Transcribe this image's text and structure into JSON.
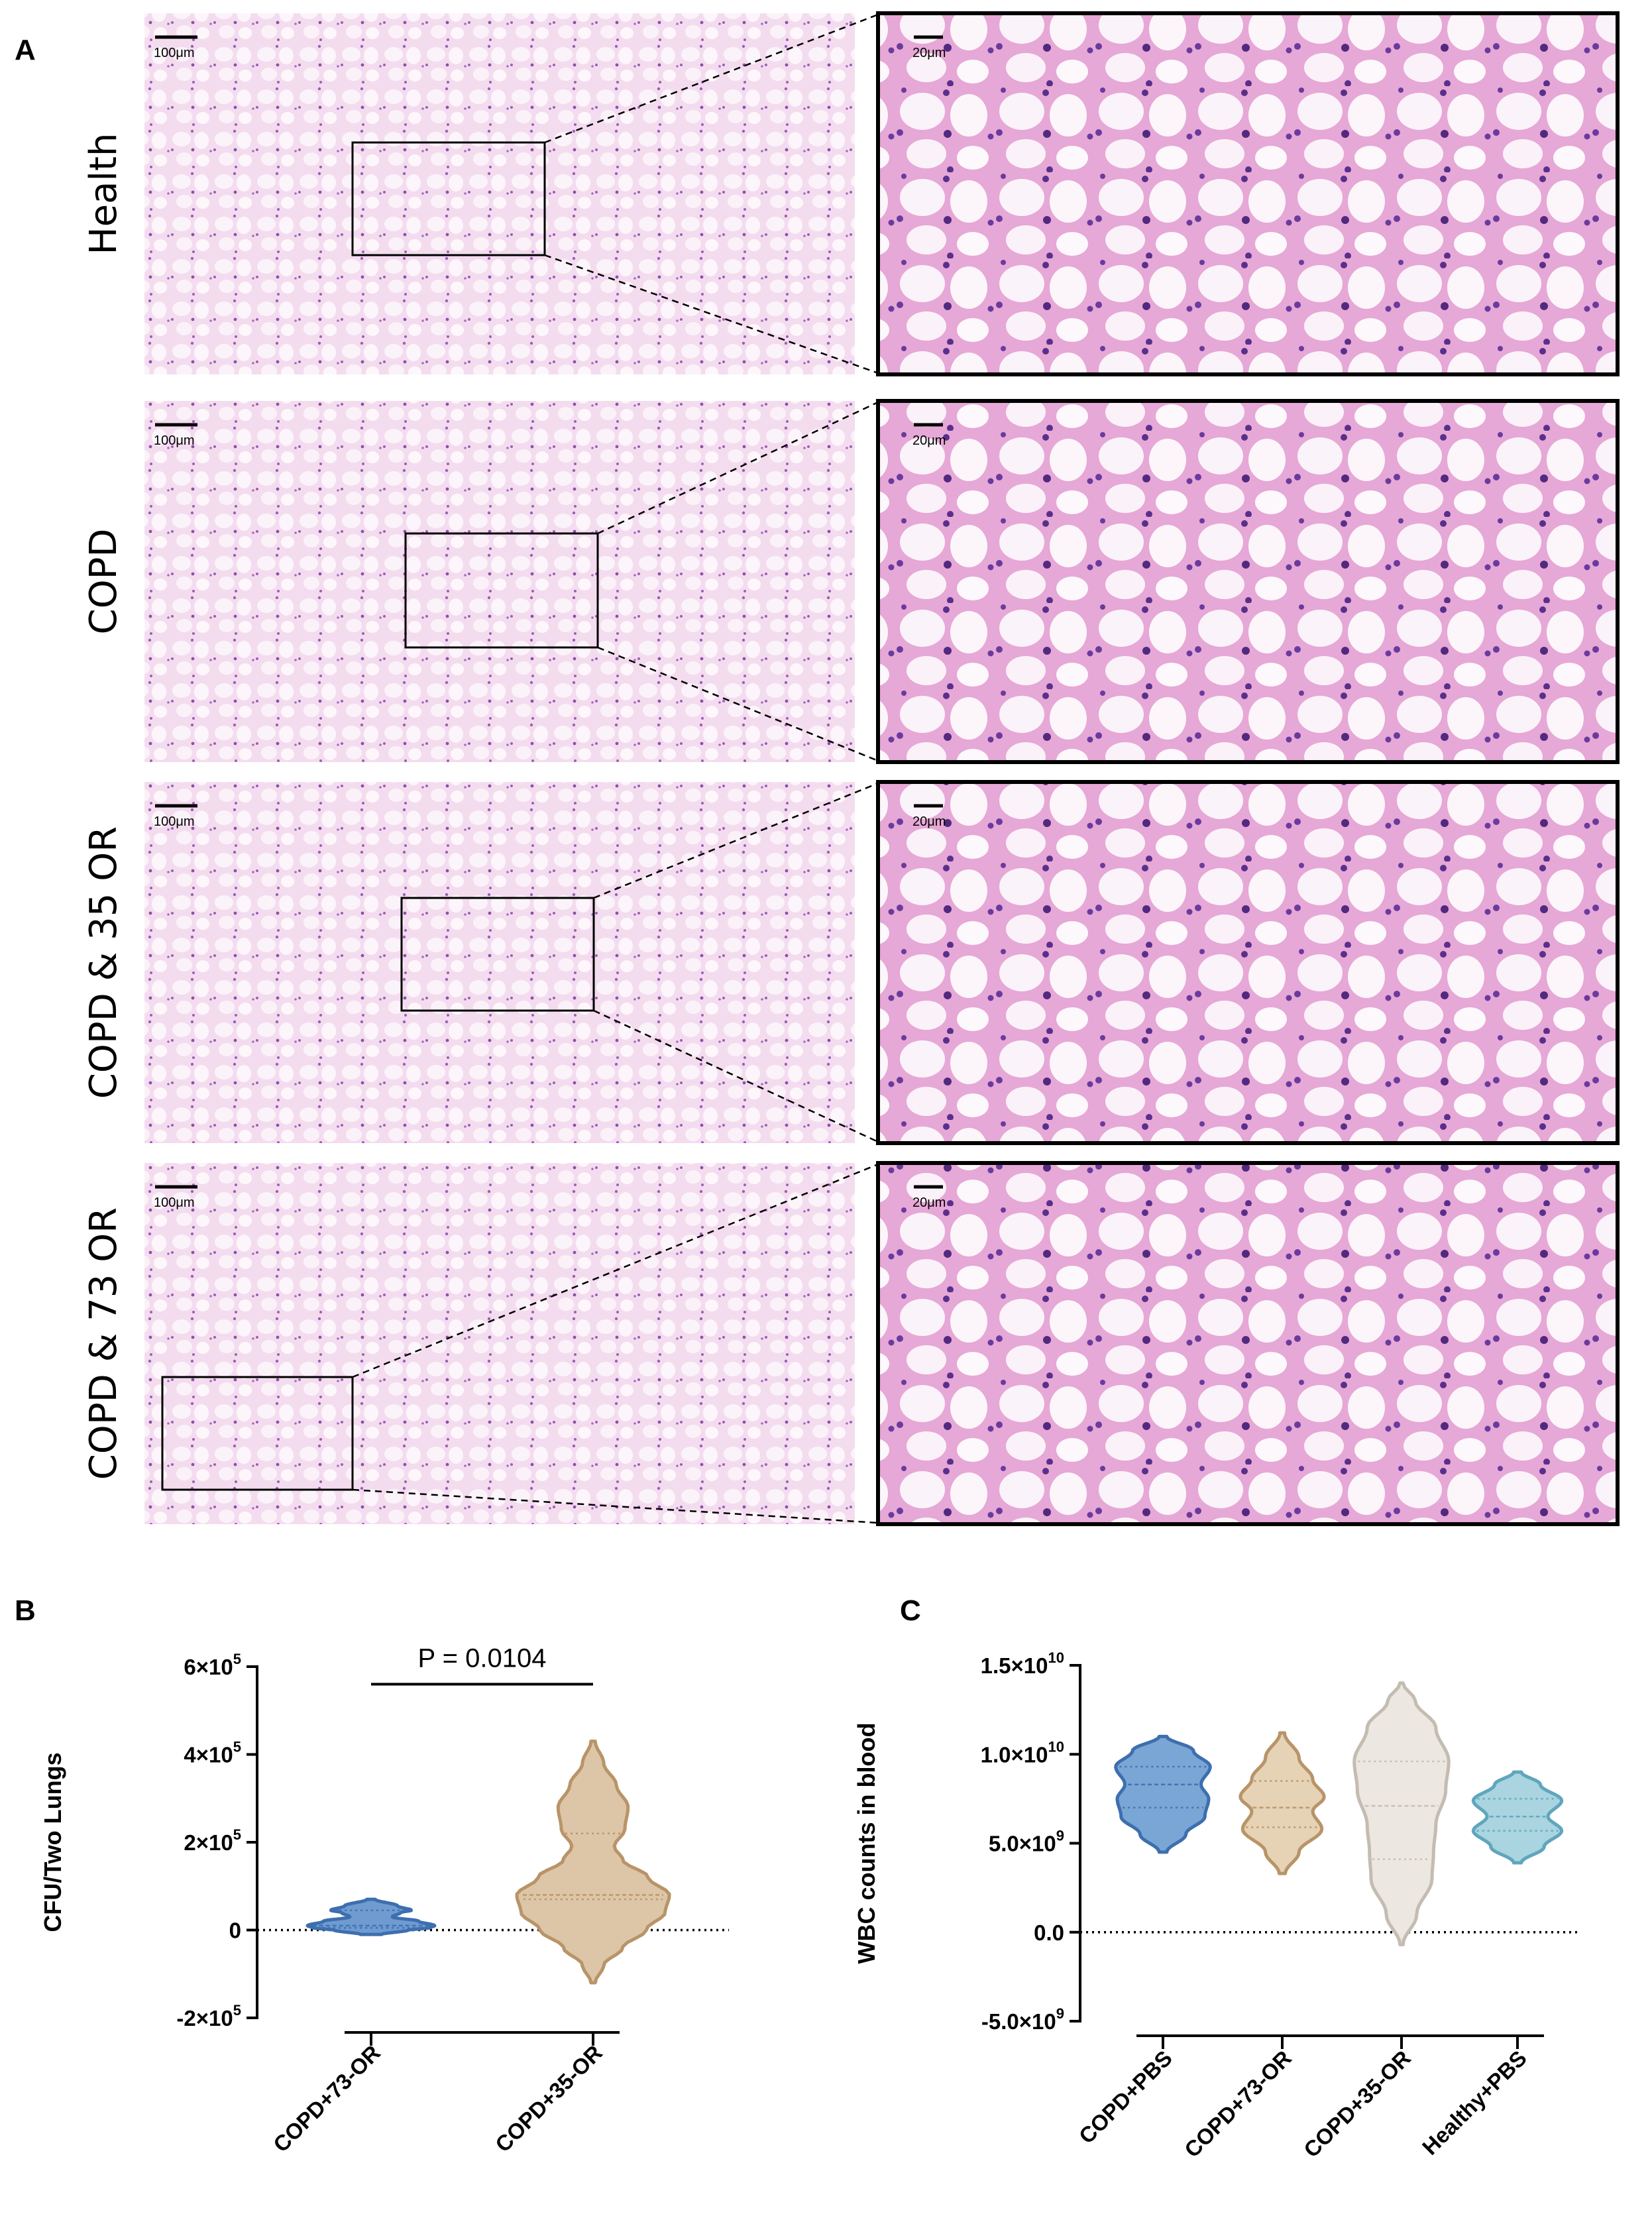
{
  "panel_a": {
    "letter": "A",
    "rows": [
      {
        "label": "Health",
        "scale_left": "100μm",
        "scale_right": "20μm"
      },
      {
        "label": "COPD",
        "scale_left": "100μm",
        "scale_right": "20μm"
      },
      {
        "label": "COPD & 35 OR",
        "scale_left": "100μm",
        "scale_right": "20μm"
      },
      {
        "label": "COPD & 73 OR",
        "scale_left": "100μm",
        "scale_right": "20μm"
      }
    ]
  },
  "chart_data": [
    {
      "panel": "B",
      "type": "violin",
      "ylabel": "CFU/Two Lungs",
      "ylim": [
        -200000,
        600000
      ],
      "yticks": [
        {
          "value": 600000,
          "mantissa": "6×10",
          "exp": "5"
        },
        {
          "value": 400000,
          "mantissa": "4×10",
          "exp": "5"
        },
        {
          "value": 200000,
          "mantissa": "2×10",
          "exp": "5"
        },
        {
          "value": 0,
          "mantissa": "0",
          "exp": ""
        },
        {
          "value": -200000,
          "mantissa": "-2×10",
          "exp": "5"
        }
      ],
      "reference_line": 0,
      "annotation": "P = 0.0104",
      "categories": [
        "COPD+73-OR",
        "COPD+35-OR"
      ],
      "series": [
        {
          "category": "COPD+73-OR",
          "color": "#6f9bd1",
          "stroke": "#3d6fae",
          "min": -10000,
          "max": 70000,
          "median": 10000,
          "q1": 5000,
          "q3": 45000,
          "density": [
            [
              -10000,
              0.1
            ],
            [
              0,
              0.35
            ],
            [
              5000,
              0.55
            ],
            [
              10000,
              0.6
            ],
            [
              20000,
              0.45
            ],
            [
              30000,
              0.2
            ],
            [
              40000,
              0.28
            ],
            [
              45000,
              0.38
            ],
            [
              55000,
              0.25
            ],
            [
              70000,
              0.04
            ]
          ]
        },
        {
          "category": "COPD+35-OR",
          "color": "#ddc6a7",
          "stroke": "#b89468",
          "min": -120000,
          "max": 430000,
          "median": 80000,
          "q1": 70000,
          "q3": 220000,
          "density": [
            [
              -120000,
              0.02
            ],
            [
              -80000,
              0.1
            ],
            [
              -40000,
              0.28
            ],
            [
              0,
              0.5
            ],
            [
              40000,
              0.68
            ],
            [
              80000,
              0.72
            ],
            [
              120000,
              0.52
            ],
            [
              160000,
              0.28
            ],
            [
              190000,
              0.2
            ],
            [
              230000,
              0.3
            ],
            [
              280000,
              0.33
            ],
            [
              330000,
              0.22
            ],
            [
              380000,
              0.1
            ],
            [
              430000,
              0.02
            ]
          ]
        }
      ]
    },
    {
      "panel": "C",
      "type": "violin",
      "ylabel": "WBC counts in blood",
      "ylim": [
        -5000000000,
        15000000000
      ],
      "yticks": [
        {
          "value": 15000000000,
          "mantissa": "1.5×10",
          "exp": "10"
        },
        {
          "value": 10000000000,
          "mantissa": "1.0×10",
          "exp": "10"
        },
        {
          "value": 5000000000,
          "mantissa": "5.0×10",
          "exp": "9"
        },
        {
          "value": 0,
          "mantissa": "0.0",
          "exp": ""
        },
        {
          "value": -5000000000,
          "mantissa": "-5.0×10",
          "exp": "9"
        }
      ],
      "reference_line": 0,
      "categories": [
        "COPD+PBS",
        "COPD+73-OR",
        "COPD+35-OR",
        "Healthy+PBS"
      ],
      "series": [
        {
          "category": "COPD+PBS",
          "color": "#7aa6d6",
          "stroke": "#3d6fae",
          "min": 4500000000,
          "max": 11000000000,
          "median": 8300000000,
          "q1": 7000000000,
          "q3": 9300000000,
          "density": [
            [
              4500000000,
              0.05
            ],
            [
              5500000000,
              0.3
            ],
            [
              6500000000,
              0.55
            ],
            [
              7500000000,
              0.6
            ],
            [
              8300000000,
              0.5
            ],
            [
              9300000000,
              0.62
            ],
            [
              10200000000,
              0.4
            ],
            [
              11000000000,
              0.05
            ]
          ]
        },
        {
          "category": "COPD+73-OR",
          "color": "#e6d2b5",
          "stroke": "#b89468",
          "min": 3300000000,
          "max": 11200000000,
          "median": 7000000000,
          "q1": 5900000000,
          "q3": 8500000000,
          "density": [
            [
              3300000000,
              0.04
            ],
            [
              4500000000,
              0.22
            ],
            [
              5800000000,
              0.52
            ],
            [
              6800000000,
              0.4
            ],
            [
              7600000000,
              0.55
            ],
            [
              8600000000,
              0.4
            ],
            [
              9800000000,
              0.22
            ],
            [
              11200000000,
              0.03
            ]
          ]
        },
        {
          "category": "COPD+35-OR",
          "color": "#ece7e0",
          "stroke": "#c4bcb1",
          "min": -700000000,
          "max": 14000000000,
          "median": 7100000000,
          "q1": 4100000000,
          "q3": 9600000000,
          "density": [
            [
              -700000000,
              0.02
            ],
            [
              1000000000,
              0.2
            ],
            [
              3000000000,
              0.4
            ],
            [
              4500000000,
              0.42
            ],
            [
              6000000000,
              0.45
            ],
            [
              8000000000,
              0.58
            ],
            [
              9600000000,
              0.62
            ],
            [
              11500000000,
              0.45
            ],
            [
              13000000000,
              0.18
            ],
            [
              14000000000,
              0.02
            ]
          ]
        },
        {
          "category": "Healthy+PBS",
          "color": "#a9d4e0",
          "stroke": "#5fa6bd",
          "min": 3900000000,
          "max": 9000000000,
          "median": 6500000000,
          "q1": 5700000000,
          "q3": 7500000000,
          "density": [
            [
              3900000000,
              0.05
            ],
            [
              4800000000,
              0.35
            ],
            [
              5700000000,
              0.58
            ],
            [
              6500000000,
              0.4
            ],
            [
              7400000000,
              0.58
            ],
            [
              8300000000,
              0.3
            ],
            [
              9000000000,
              0.05
            ]
          ]
        }
      ]
    }
  ]
}
